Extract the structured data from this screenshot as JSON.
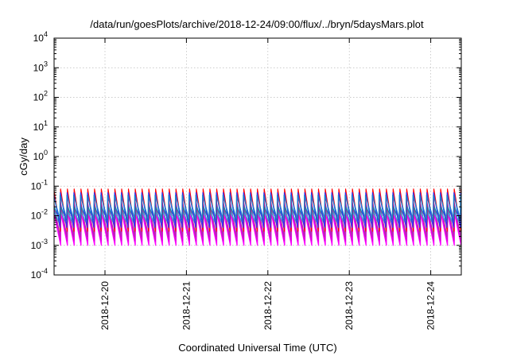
{
  "chart_data": {
    "type": "line",
    "title": "/data/run/goesPlots/archive/2018-12-24/09:00/flux/../bryn/5daysMars.plot",
    "xlabel": "Coordinated Universal Time (UTC)",
    "ylabel": "cGy/day",
    "x_type": "time",
    "xlim": [
      "2018-12-19T09:00",
      "2018-12-24T09:00"
    ],
    "x_ticks": [
      "2018-12-20",
      "2018-12-21",
      "2018-12-22",
      "2018-12-23",
      "2018-12-24"
    ],
    "y_scale": "log",
    "ylim": [
      0.0001,
      10000
    ],
    "y_ticks": [
      {
        "base": "10",
        "exp": "-4"
      },
      {
        "base": "10",
        "exp": "-3"
      },
      {
        "base": "10",
        "exp": "-2"
      },
      {
        "base": "10",
        "exp": "-1"
      },
      {
        "base": "10",
        "exp": "0"
      },
      {
        "base": "10",
        "exp": "1"
      },
      {
        "base": "10",
        "exp": "2"
      },
      {
        "base": "10",
        "exp": "3"
      },
      {
        "base": "10",
        "exp": "4"
      }
    ],
    "grid": true,
    "cycle_hours": 2.0,
    "series": [
      {
        "color": "#ff00ff",
        "peak": 0.012,
        "trough": 0.001
      },
      {
        "color": "#dd00dd",
        "peak": 0.02,
        "trough": 0.0014
      },
      {
        "color": "#b030b0",
        "peak": 0.03,
        "trough": 0.002
      },
      {
        "color": "#20c0d8",
        "peak": 0.016,
        "trough": 0.005
      },
      {
        "color": "#00a0a0",
        "peak": 0.02,
        "trough": 0.006
      },
      {
        "color": "#ff0000",
        "peak": 0.08,
        "trough": 0.003
      },
      {
        "color": "#3030ff",
        "peak": 0.06,
        "trough": 0.004
      },
      {
        "color": "#2080c8",
        "peak": 0.05,
        "trough": 0.008
      }
    ]
  }
}
